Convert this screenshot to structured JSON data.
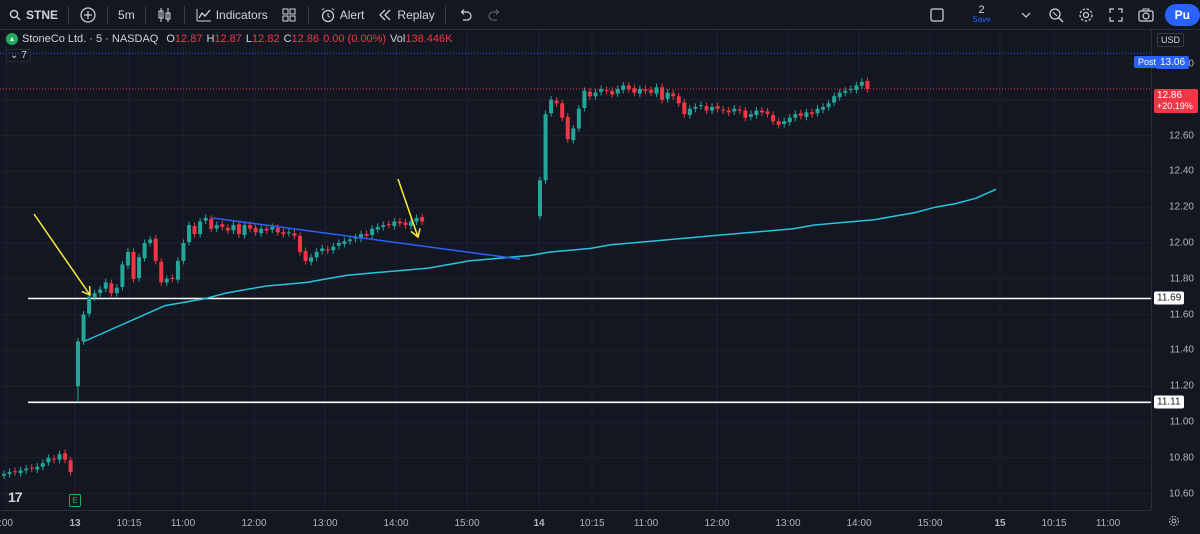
{
  "toolbar": {
    "symbol": "STNE",
    "interval": "5m",
    "indicators_label": "Indicators",
    "alert_label": "Alert",
    "replay_label": "Replay",
    "save_count": "2",
    "save_label": "Save",
    "publish_label": "Pu",
    "icons": [
      "search-icon",
      "plus-icon",
      "candles-icon",
      "indicators-icon",
      "layouts-icon",
      "alert-icon",
      "replay-icon",
      "undo-icon",
      "redo-icon",
      "layout-square-icon",
      "chevron-down-icon",
      "quick-search-icon",
      "settings-icon",
      "fullscreen-icon",
      "camera-icon"
    ]
  },
  "legend": {
    "title": "StoneCo Ltd. · 5 · NASDAQ",
    "o_label": "O",
    "o_value": "12.87",
    "h_label": "H",
    "h_value": "12.87",
    "l_label": "L",
    "l_value": "12.82",
    "c_label": "C",
    "c_value": "12.86",
    "change": "0.00 (0.00%)",
    "vol_label": "Vol",
    "vol_value": "138.446K",
    "indicator_count": "7"
  },
  "price_axis": {
    "currency": "USD",
    "post_label": "Post",
    "post_value": "13.06",
    "last_price": "12.86",
    "last_change": "+20.19%",
    "line1_value": "11.69",
    "line2_value": "11.11",
    "ticks": [
      "13.00",
      "12.80",
      "12.60",
      "12.40",
      "12.20",
      "12.00",
      "11.80",
      "11.60",
      "11.40",
      "11.20",
      "11.00",
      "10.80",
      "10.60"
    ]
  },
  "time_axis": {
    "ticks": [
      ":00",
      "13",
      "10:15",
      "11:00",
      "12:00",
      "13:00",
      "14:00",
      "15:00",
      "14",
      "10:15",
      "11:00",
      "12:00",
      "13:00",
      "14:00",
      "15:00",
      "15",
      "10:15",
      "11:00"
    ]
  },
  "earnings_badge": "E",
  "tv_logo": "17",
  "colors": {
    "background": "#131722",
    "up": "#26a69a",
    "down": "#f23645",
    "vwap": "#26c6da",
    "trendline": "#2962ff",
    "arrow": "#ffeb3b",
    "hline": "#ffffff",
    "accent": "#2962ff"
  },
  "chart_data": {
    "type": "candlestick",
    "symbol": "STNE",
    "interval": "5m",
    "ylim": [
      10.55,
      13.1
    ],
    "y_ticks": [
      10.6,
      10.8,
      11.0,
      11.2,
      11.4,
      11.6,
      11.8,
      12.0,
      12.2,
      12.4,
      12.6,
      12.8,
      13.0
    ],
    "horizontal_lines": [
      11.69,
      11.11
    ],
    "current_price": 12.86,
    "post_market_price": 13.06,
    "days": [
      {
        "label": "12 (end)",
        "closes": [
          10.71,
          10.72,
          10.72,
          10.73,
          10.74,
          10.74,
          10.75,
          10.77,
          10.8,
          10.79,
          10.82,
          10.79,
          10.72
        ]
      },
      {
        "label": "13",
        "closes": [
          11.45,
          11.6,
          11.7,
          11.72,
          11.74,
          11.78,
          11.72,
          11.75,
          11.88,
          11.95,
          11.8,
          11.92,
          12.0,
          12.02,
          11.9,
          11.78,
          11.8,
          11.8,
          11.9,
          12.0,
          12.1,
          12.05,
          12.12,
          12.14,
          12.08,
          12.1,
          12.09,
          12.07,
          12.1,
          12.05,
          12.1,
          12.08,
          12.06,
          12.08,
          12.07,
          12.09,
          12.06,
          12.05,
          12.06,
          12.04,
          11.95,
          11.9,
          11.92,
          11.95,
          11.97,
          11.96,
          11.98,
          12.0,
          12.01,
          12.02,
          12.03,
          12.05,
          12.04,
          12.08,
          12.09,
          12.1,
          12.1,
          12.12,
          12.11,
          12.1,
          12.12,
          12.14,
          12.12
        ]
      },
      {
        "label": "14",
        "closes": [
          12.35,
          12.72,
          12.8,
          12.78,
          12.7,
          12.58,
          12.64,
          12.75,
          12.85,
          12.82,
          12.84,
          12.86,
          12.85,
          12.83,
          12.86,
          12.88,
          12.86,
          12.84,
          12.86,
          12.85,
          12.84,
          12.87,
          12.8,
          12.84,
          12.82,
          12.78,
          12.72,
          12.75,
          12.76,
          12.77,
          12.74,
          12.76,
          12.75,
          12.74,
          12.73,
          12.75,
          12.74,
          12.7,
          12.72,
          12.74,
          12.73,
          12.72,
          12.68,
          12.66,
          12.68,
          12.7,
          12.72,
          12.71,
          12.73,
          12.72,
          12.75,
          12.76,
          12.78,
          12.82,
          12.84,
          12.85,
          12.86,
          12.88,
          12.9,
          12.86
        ]
      }
    ],
    "vwap": [
      [
        11.45,
        11.5,
        11.55,
        11.6,
        11.65,
        11.67,
        11.69,
        11.72,
        11.74,
        11.76,
        11.77,
        11.78,
        11.8,
        11.82,
        11.83,
        11.84,
        11.85,
        11.86,
        11.88,
        11.9,
        11.91,
        11.92,
        11.93,
        11.95,
        11.96,
        11.97,
        11.99,
        12.0,
        12.01,
        12.02,
        12.03,
        12.04,
        12.05,
        12.06,
        12.07,
        12.08,
        12.1,
        12.11,
        12.12,
        12.13,
        12.15,
        12.17,
        12.2,
        12.22,
        12.25,
        12.3
      ]
    ]
  }
}
